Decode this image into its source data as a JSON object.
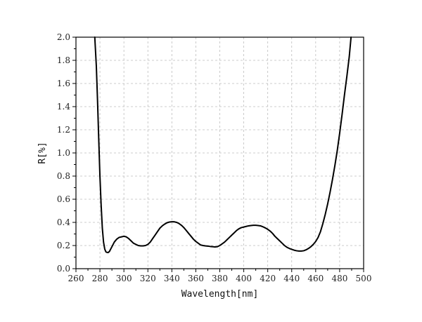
{
  "chart_data": {
    "type": "line",
    "xlabel": "Wavelength[nm]",
    "ylabel": "R[%]",
    "xlim": [
      260,
      500
    ],
    "ylim": [
      0,
      2.0
    ],
    "x_ticks": [
      260,
      280,
      300,
      320,
      340,
      360,
      380,
      400,
      420,
      440,
      460,
      480,
      500
    ],
    "y_ticks": [
      "0.0",
      "0.2",
      "0.4",
      "0.6",
      "0.8",
      "1.0",
      "1.2",
      "1.4",
      "1.6",
      "1.8",
      "2.0"
    ],
    "grid": true,
    "line_color": "#000000",
    "series": [
      {
        "x": [
          275.7,
          277,
          278,
          279,
          280,
          281,
          282,
          283,
          284,
          285,
          286,
          287,
          288,
          289,
          290,
          292,
          294,
          296,
          298,
          300,
          302,
          304,
          306,
          308,
          310,
          312,
          314,
          316,
          318,
          320,
          322,
          324,
          326,
          328,
          330,
          332,
          334,
          336,
          338,
          340,
          342,
          344,
          346,
          348,
          350,
          352,
          354,
          356,
          358,
          360,
          362,
          364,
          366,
          368,
          370,
          372,
          374,
          376,
          378,
          380,
          382,
          384,
          386,
          388,
          390,
          392,
          394,
          396,
          398,
          400,
          402,
          404,
          406,
          408,
          410,
          412,
          414,
          416,
          418,
          420,
          422,
          424,
          426,
          428,
          430,
          432,
          434,
          436,
          438,
          440,
          442,
          444,
          446,
          448,
          450,
          452,
          454,
          456,
          458,
          460,
          462,
          464,
          466,
          468,
          470,
          472,
          474,
          476,
          478,
          480,
          482,
          484,
          486,
          488,
          489.5
        ],
        "y": [
          2.0,
          1.75,
          1.45,
          1.12,
          0.8,
          0.55,
          0.35,
          0.23,
          0.17,
          0.145,
          0.14,
          0.14,
          0.15,
          0.17,
          0.19,
          0.23,
          0.255,
          0.27,
          0.275,
          0.28,
          0.275,
          0.26,
          0.24,
          0.22,
          0.21,
          0.2,
          0.197,
          0.197,
          0.2,
          0.21,
          0.23,
          0.26,
          0.29,
          0.32,
          0.35,
          0.37,
          0.385,
          0.397,
          0.403,
          0.405,
          0.405,
          0.4,
          0.39,
          0.375,
          0.355,
          0.33,
          0.305,
          0.28,
          0.255,
          0.235,
          0.22,
          0.205,
          0.2,
          0.197,
          0.195,
          0.192,
          0.19,
          0.188,
          0.19,
          0.2,
          0.215,
          0.23,
          0.25,
          0.27,
          0.29,
          0.31,
          0.33,
          0.345,
          0.355,
          0.36,
          0.365,
          0.37,
          0.373,
          0.375,
          0.375,
          0.373,
          0.37,
          0.362,
          0.352,
          0.34,
          0.325,
          0.305,
          0.28,
          0.26,
          0.24,
          0.22,
          0.2,
          0.185,
          0.175,
          0.167,
          0.16,
          0.155,
          0.152,
          0.152,
          0.155,
          0.163,
          0.175,
          0.19,
          0.21,
          0.235,
          0.27,
          0.32,
          0.39,
          0.47,
          0.56,
          0.66,
          0.77,
          0.89,
          1.02,
          1.17,
          1.33,
          1.5,
          1.66,
          1.83,
          2.0
        ]
      }
    ]
  }
}
